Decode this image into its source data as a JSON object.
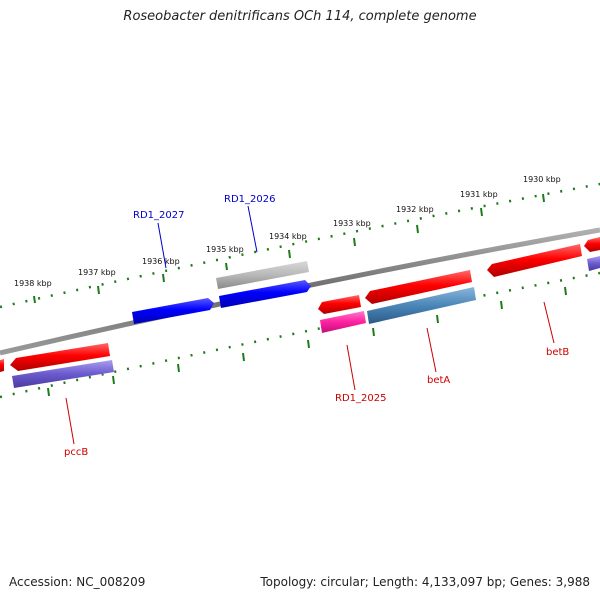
{
  "title": "Roseobacter denitrificans OCh 114, complete genome",
  "accession_text": "Accession: NC_008209",
  "topology_text": "Topology: circular; Length: 4,133,097 bp; Genes: 3,988",
  "colors": {
    "backbone": "#7a7a7a",
    "tick": "#1e7a1e",
    "red": "#ff0000",
    "blue": "#0000ff",
    "gray": "#b0b0b0",
    "magenta": "#ff20a0",
    "steelblue": "#4a86b8",
    "slateblue": "#6a5acd",
    "label_red": "#cc0000",
    "label_blue": "#0000cc"
  },
  "ticks": [
    {
      "label": "1938 kbp"
    },
    {
      "label": "1937 kbp"
    },
    {
      "label": "1936 kbp"
    },
    {
      "label": "1935 kbp"
    },
    {
      "label": "1934 kbp"
    },
    {
      "label": "1933 kbp"
    },
    {
      "label": "1932 kbp"
    },
    {
      "label": "1931 kbp"
    },
    {
      "label": "1930 kbp"
    }
  ],
  "genes": [
    {
      "label": "RD1_2027",
      "color": "blue",
      "strand": "forward"
    },
    {
      "label": "RD1_2026",
      "color": "blue",
      "strand": "forward"
    },
    {
      "label": "",
      "color": "gray",
      "strand": "forward"
    },
    {
      "label": "RD1_2025",
      "color": "red",
      "strand": "reverse"
    },
    {
      "label": "betA",
      "color": "red",
      "strand": "reverse"
    },
    {
      "label": "betB",
      "color": "red",
      "strand": "reverse"
    },
    {
      "label": "pccB",
      "color": "red",
      "strand": "reverse"
    }
  ],
  "feature_labels": {
    "rd1_2027": "RD1_2027",
    "rd1_2026": "RD1_2026",
    "rd1_2025": "RD1_2025",
    "betA": "betA",
    "betB": "betB",
    "pccB": "pccB"
  }
}
